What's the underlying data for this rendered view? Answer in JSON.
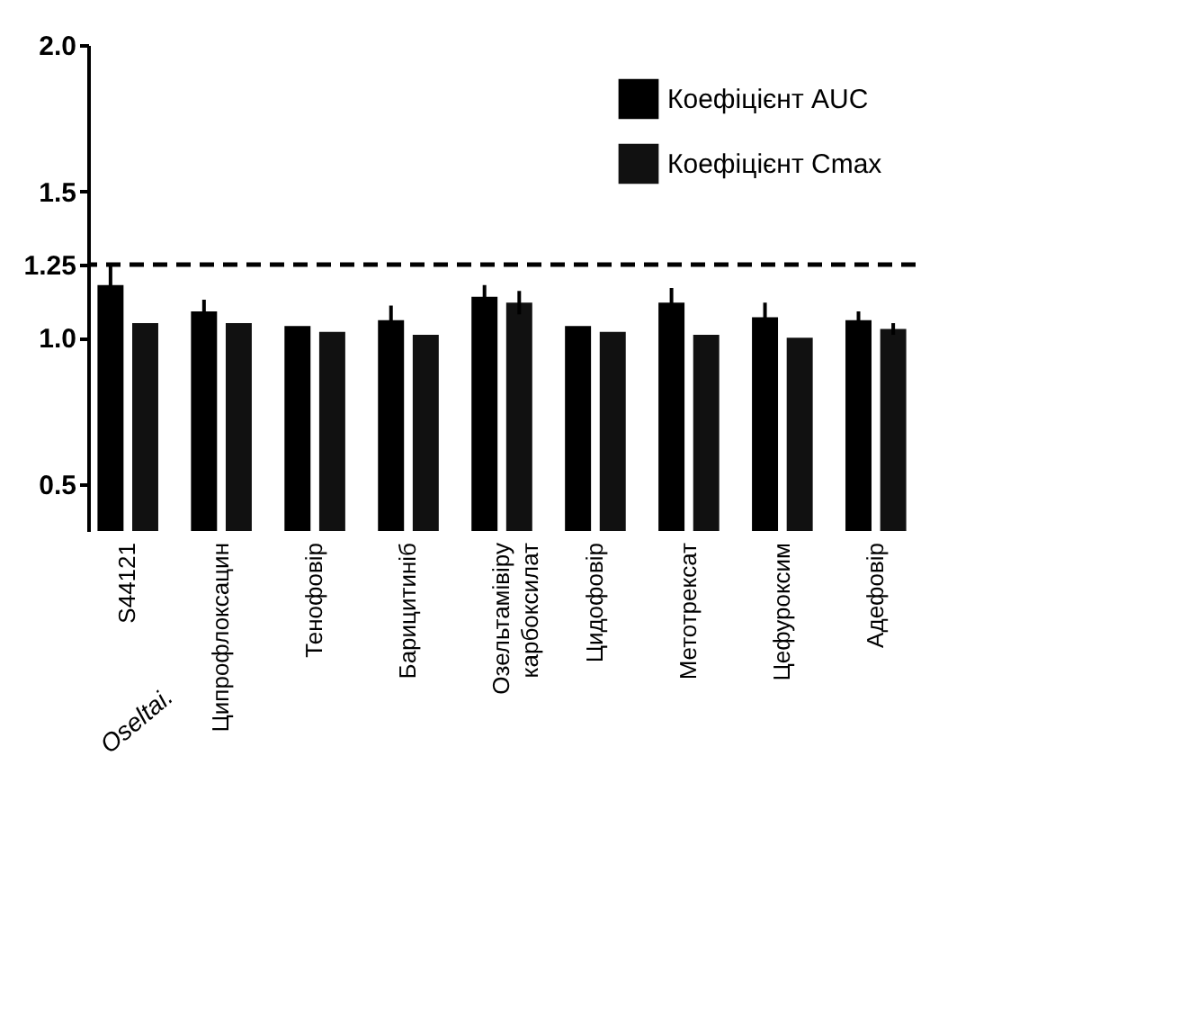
{
  "chart_data": {
    "type": "bar",
    "categories": [
      "S44121",
      "Ципрофлоксацин",
      "Тенофовір",
      "Барицитиніб",
      "Озельтамівіру карбоксилат",
      "Цидофовір",
      "Метотрексат",
      "Цефуроксим",
      "Адефовір"
    ],
    "series": [
      {
        "name": "Коефіцієнт AUC",
        "color": "#000000",
        "values": [
          1.18,
          1.09,
          1.04,
          1.06,
          1.14,
          1.04,
          1.12,
          1.07,
          1.06
        ],
        "errors": [
          0.07,
          0.04,
          null,
          0.05,
          0.04,
          null,
          0.05,
          0.05,
          0.03
        ]
      },
      {
        "name": "Коефіцієнт Cmax",
        "color": "#111111",
        "values": [
          1.05,
          1.05,
          1.02,
          1.01,
          1.12,
          1.02,
          1.01,
          1.0,
          1.03
        ],
        "errors": [
          null,
          null,
          null,
          null,
          0.04,
          null,
          null,
          null,
          0.02
        ]
      }
    ],
    "ylim": [
      0.34,
      2.0
    ],
    "yticks": [
      0.5,
      {
        "value": 1.0,
        "label": "1.0"
      },
      1.25,
      1.5,
      {
        "value": 2.0,
        "label": "2.0"
      }
    ],
    "ref_lines": [
      {
        "axis": "y",
        "value": 1.25,
        "line_style": "dashed",
        "color": "#000000"
      }
    ],
    "legend": "top right",
    "grid": false,
    "annotations": [
      "Oseltai."
    ]
  }
}
